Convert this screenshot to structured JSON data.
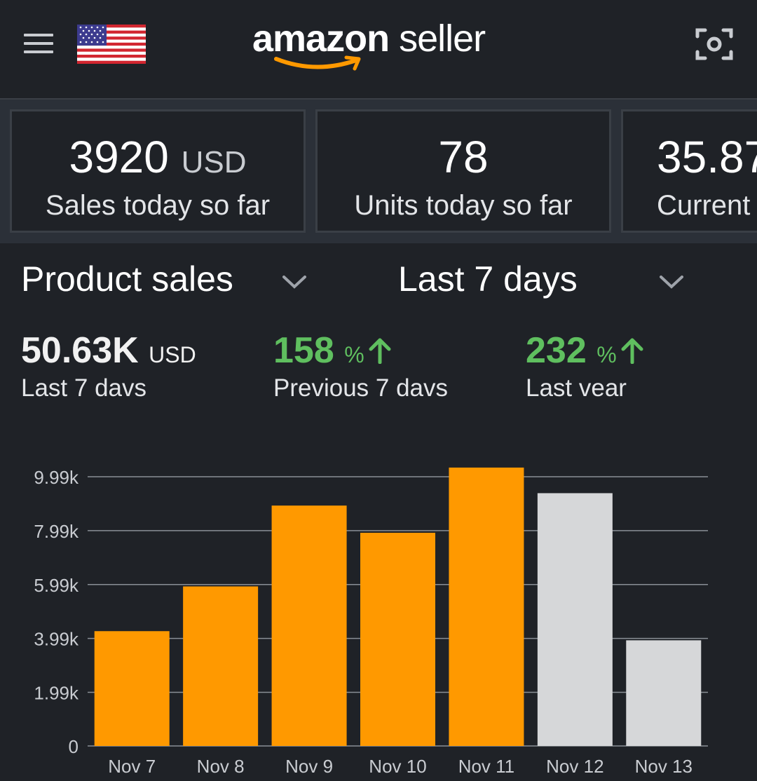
{
  "header": {
    "logo_bold": "amazon",
    "logo_rest": " seller"
  },
  "metrics": [
    {
      "value": "3920",
      "unit": "USD",
      "label": "Sales today so far"
    },
    {
      "value": "78",
      "unit": "",
      "label": "Units today so far"
    },
    {
      "value": "35.87",
      "unit": "",
      "label": "Current"
    }
  ],
  "filters": {
    "metric_label": "Product sales",
    "range_label": "Last 7 days"
  },
  "stats": {
    "total": {
      "value": "50.63K",
      "unit": "USD",
      "label": "Last 7 davs"
    },
    "previous": {
      "value": "158",
      "unit": "%",
      "label": "Previous 7 davs"
    },
    "last_year": {
      "value": "232",
      "unit": "%",
      "label": "Last vear"
    }
  },
  "colors": {
    "accent": "#ff9900",
    "muted_bar": "#d6d7d9",
    "positive": "#5fbf5f",
    "background": "#1f2227"
  },
  "chart_data": {
    "type": "bar",
    "categories": [
      "Nov 7",
      "Nov 8",
      "Nov 9",
      "Nov 10",
      "Nov 11",
      "Nov 12",
      "Nov 13"
    ],
    "values": [
      4260,
      5920,
      8920,
      7910,
      10330,
      9380,
      3920
    ],
    "bar_colors": [
      "#ff9900",
      "#ff9900",
      "#ff9900",
      "#ff9900",
      "#ff9900",
      "#d6d7d9",
      "#d6d7d9"
    ],
    "yticks": [
      0,
      1990,
      3990,
      5990,
      7990,
      9990
    ],
    "ytick_labels": [
      "0",
      "1.99k",
      "3.99k",
      "5.99k",
      "7.99k",
      "9.99k"
    ],
    "ylim": [
      0,
      9990
    ],
    "grid": true
  }
}
